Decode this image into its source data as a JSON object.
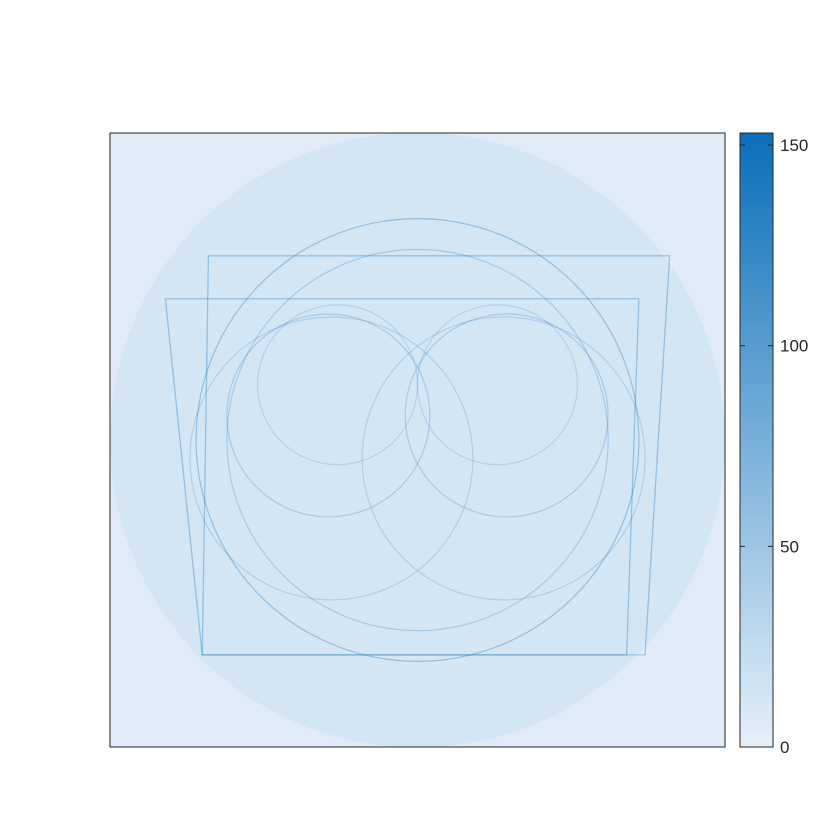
{
  "chart_data": {
    "type": "heatmap",
    "title": "",
    "xlabel": "",
    "ylabel": "",
    "x_ticks": [],
    "y_ticks": [],
    "colorbar": {
      "range": [
        0,
        153
      ],
      "ticks": [
        0,
        50,
        100,
        150
      ],
      "tick_labels": [
        "0",
        "50",
        "100",
        "150"
      ],
      "colormap": [
        "#e6f0f9",
        "#0a6fb9"
      ]
    },
    "background_value": 5,
    "density_description_features": {
      "disk": {
        "center": [
          0.5,
          0.5
        ],
        "radius": 0.5,
        "value": 12
      },
      "squares": [
        {
          "corners": [
            [
              0.16,
              0.8
            ],
            [
              0.91,
              0.8
            ],
            [
              0.87,
              0.15
            ],
            [
              0.15,
              0.15
            ]
          ],
          "value": 30
        },
        {
          "corners": [
            [
              0.09,
              0.73
            ],
            [
              0.86,
              0.73
            ],
            [
              0.84,
              0.15
            ],
            [
              0.15,
              0.15
            ]
          ],
          "value": 30
        }
      ],
      "circles": [
        {
          "center": [
            0.5,
            0.5
          ],
          "radius": 0.36,
          "value": 35
        },
        {
          "center": [
            0.5,
            0.5
          ],
          "radius": 0.31,
          "value": 25
        },
        {
          "center": [
            0.355,
            0.54
          ],
          "radius": 0.165,
          "value": 25
        },
        {
          "center": [
            0.645,
            0.54
          ],
          "radius": 0.165,
          "value": 25
        },
        {
          "center": [
            0.37,
            0.59
          ],
          "radius": 0.13,
          "value": 18
        },
        {
          "center": [
            0.63,
            0.59
          ],
          "radius": 0.13,
          "value": 18
        },
        {
          "center": [
            0.36,
            0.47
          ],
          "radius": 0.23,
          "value": 20
        },
        {
          "center": [
            0.64,
            0.47
          ],
          "radius": 0.23,
          "value": 20
        }
      ]
    }
  }
}
